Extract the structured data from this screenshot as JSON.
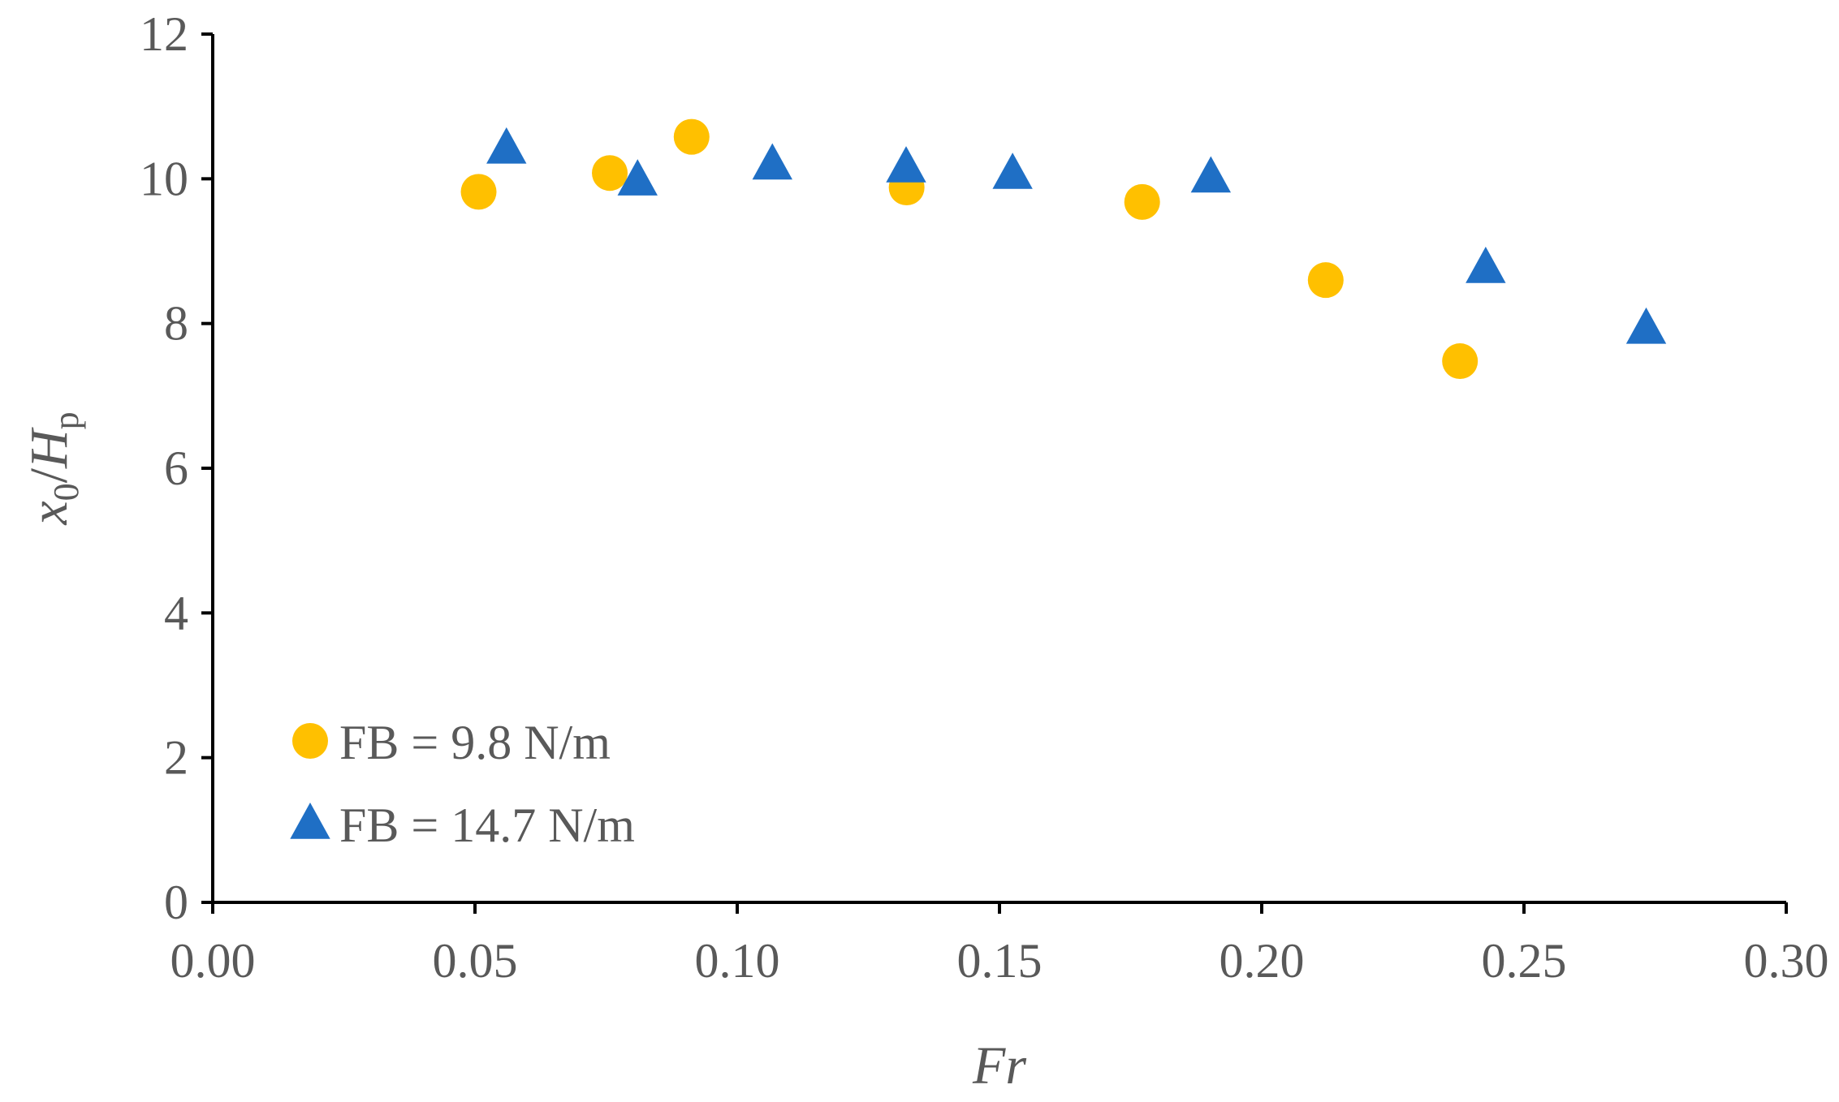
{
  "chart_data": {
    "type": "scatter",
    "xlabel": "Fr",
    "ylabel": {
      "main": "x",
      "sub1": "0",
      "slash": "/",
      "main2": "H",
      "sub2": "p"
    },
    "xlim": [
      0.0,
      0.3
    ],
    "ylim": [
      0,
      12
    ],
    "x_ticks": [
      0.0,
      0.05,
      0.1,
      0.15,
      0.2,
      0.25,
      0.3
    ],
    "x_tick_labels": [
      "0.00",
      "0.05",
      "0.10",
      "0.15",
      "0.20",
      "0.25",
      "0.30"
    ],
    "y_ticks": [
      0,
      2,
      4,
      6,
      8,
      10,
      12
    ],
    "y_tick_labels": [
      "0",
      "2",
      "4",
      "6",
      "8",
      "10",
      "12"
    ],
    "grid": false,
    "legend_position": "bottom-left",
    "series": [
      {
        "name": "FB = 9.8 N/m",
        "marker": "circle",
        "color": "#FFC000",
        "points": [
          {
            "x": 0.0507,
            "y": 9.82
          },
          {
            "x": 0.0757,
            "y": 10.08
          },
          {
            "x": 0.0913,
            "y": 10.58
          },
          {
            "x": 0.1323,
            "y": 9.88
          },
          {
            "x": 0.1772,
            "y": 9.68
          },
          {
            "x": 0.2122,
            "y": 8.6
          },
          {
            "x": 0.2378,
            "y": 7.48
          }
        ]
      },
      {
        "name": "FB = 14.7 N/m",
        "marker": "triangle",
        "color": "#1F6FC5",
        "points": [
          {
            "x": 0.056,
            "y": 10.42
          },
          {
            "x": 0.081,
            "y": 9.98
          },
          {
            "x": 0.1067,
            "y": 10.2
          },
          {
            "x": 0.1322,
            "y": 10.16
          },
          {
            "x": 0.1525,
            "y": 10.07
          },
          {
            "x": 0.1903,
            "y": 10.02
          },
          {
            "x": 0.2427,
            "y": 8.77
          },
          {
            "x": 0.2733,
            "y": 7.93
          }
        ]
      }
    ]
  }
}
